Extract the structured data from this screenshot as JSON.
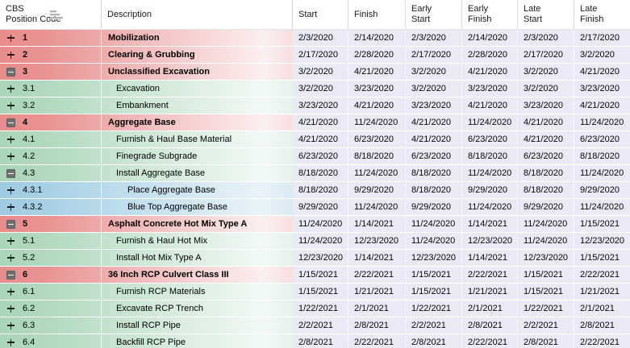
{
  "table": {
    "columns": [
      {
        "key": "cbs-position-code",
        "label": "CBS\nPosition Code",
        "has_sort_icon": true
      },
      {
        "key": "description",
        "label": "Description"
      },
      {
        "key": "start",
        "label": "Start"
      },
      {
        "key": "finish",
        "label": "Finish"
      },
      {
        "key": "early-start",
        "label": "Early\nStart"
      },
      {
        "key": "early-finish",
        "label": "Early\nFinish"
      },
      {
        "key": "late-start",
        "label": "Late\nStart"
      },
      {
        "key": "late-finish",
        "label": "Late\nFinish"
      }
    ],
    "rows": [
      {
        "code": "1",
        "description": "Mobilization",
        "level": 1,
        "type": "summary",
        "toggle": "collapsed",
        "dates": [
          "2/3/2020",
          "2/14/2020",
          "2/3/2020",
          "2/14/2020",
          "2/3/2020",
          "2/17/2020"
        ]
      },
      {
        "code": "2",
        "description": "Clearing & Grubbing",
        "level": 1,
        "type": "summary",
        "toggle": "collapsed",
        "dates": [
          "2/17/2020",
          "2/28/2020",
          "2/17/2020",
          "2/28/2020",
          "2/17/2020",
          "3/2/2020"
        ]
      },
      {
        "code": "3",
        "description": "Unclassified Excavation",
        "level": 1,
        "type": "summary",
        "toggle": "expanded",
        "dates": [
          "3/2/2020",
          "4/21/2020",
          "3/2/2020",
          "4/21/2020",
          "3/2/2020",
          "4/21/2020"
        ]
      },
      {
        "code": "3.1",
        "description": "Excavation",
        "level": 2,
        "type": "activity",
        "toggle": "collapsed",
        "dates": [
          "3/2/2020",
          "3/23/2020",
          "3/2/2020",
          "3/23/2020",
          "3/2/2020",
          "3/23/2020"
        ]
      },
      {
        "code": "3.2",
        "description": "Embankment",
        "level": 2,
        "type": "activity",
        "toggle": "collapsed",
        "dates": [
          "3/23/2020",
          "4/21/2020",
          "3/23/2020",
          "4/21/2020",
          "3/23/2020",
          "4/21/2020"
        ]
      },
      {
        "code": "4",
        "description": "Aggregate Base",
        "level": 1,
        "type": "summary",
        "toggle": "expanded",
        "dates": [
          "4/21/2020",
          "11/24/2020",
          "4/21/2020",
          "11/24/2020",
          "4/21/2020",
          "11/24/2020"
        ]
      },
      {
        "code": "4.1",
        "description": "Furnish & Haul Base Material",
        "level": 2,
        "type": "activity",
        "toggle": "collapsed",
        "dates": [
          "4/21/2020",
          "6/23/2020",
          "4/21/2020",
          "6/23/2020",
          "4/21/2020",
          "6/23/2020"
        ]
      },
      {
        "code": "4.2",
        "description": "Finegrade Subgrade",
        "level": 2,
        "type": "activity",
        "toggle": "collapsed",
        "dates": [
          "6/23/2020",
          "8/18/2020",
          "6/23/2020",
          "8/18/2020",
          "6/23/2020",
          "8/18/2020"
        ]
      },
      {
        "code": "4.3",
        "description": "Install Aggregate Base",
        "level": 2,
        "type": "activity",
        "toggle": "expanded",
        "dates": [
          "8/18/2020",
          "11/24/2020",
          "8/18/2020",
          "11/24/2020",
          "8/18/2020",
          "11/24/2020"
        ]
      },
      {
        "code": "4.3.1",
        "description": "Place Aggregate Base",
        "level": 3,
        "type": "sub_activity",
        "toggle": "collapsed",
        "dates": [
          "8/18/2020",
          "9/29/2020",
          "8/18/2020",
          "9/29/2020",
          "8/18/2020",
          "9/29/2020"
        ]
      },
      {
        "code": "4.3.2",
        "description": "Blue Top Aggregate Base",
        "level": 3,
        "type": "sub_activity",
        "toggle": "collapsed",
        "dates": [
          "9/29/2020",
          "11/24/2020",
          "9/29/2020",
          "11/24/2020",
          "9/29/2020",
          "11/24/2020"
        ]
      },
      {
        "code": "5",
        "description": "Asphalt Concrete Hot Mix Type A",
        "level": 1,
        "type": "summary",
        "toggle": "expanded",
        "dates": [
          "11/24/2020",
          "1/14/2021",
          "11/24/2020",
          "1/14/2021",
          "11/24/2020",
          "1/15/2021"
        ]
      },
      {
        "code": "5.1",
        "description": "Furnish & Haul Hot Mix",
        "level": 2,
        "type": "activity",
        "toggle": "collapsed",
        "dates": [
          "11/24/2020",
          "12/23/2020",
          "11/24/2020",
          "12/23/2020",
          "11/24/2020",
          "12/23/2020"
        ]
      },
      {
        "code": "5.2",
        "description": "Install Hot Mix Type A",
        "level": 2,
        "type": "activity",
        "toggle": "collapsed",
        "dates": [
          "12/23/2020",
          "1/14/2021",
          "12/23/2020",
          "1/14/2021",
          "12/23/2020",
          "1/15/2021"
        ]
      },
      {
        "code": "6",
        "description": "36 Inch RCP Culvert Class III",
        "level": 1,
        "type": "summary",
        "toggle": "expanded",
        "dates": [
          "1/15/2021",
          "2/22/2021",
          "1/15/2021",
          "2/22/2021",
          "1/15/2021",
          "2/22/2021"
        ]
      },
      {
        "code": "6.1",
        "description": "Furnish RCP Materials",
        "level": 2,
        "type": "activity",
        "toggle": "collapsed",
        "dates": [
          "1/15/2021",
          "1/21/2021",
          "1/15/2021",
          "1/21/2021",
          "1/15/2021",
          "1/21/2021"
        ]
      },
      {
        "code": "6.2",
        "description": "Excavate RCP Trench",
        "level": 2,
        "type": "activity",
        "toggle": "collapsed",
        "dates": [
          "1/22/2021",
          "2/1/2021",
          "1/22/2021",
          "2/1/2021",
          "1/22/2021",
          "2/1/2021"
        ]
      },
      {
        "code": "6.3",
        "description": "Install RCP Pipe",
        "level": 2,
        "type": "activity",
        "toggle": "collapsed",
        "dates": [
          "2/2/2021",
          "2/8/2021",
          "2/2/2021",
          "2/8/2021",
          "2/2/2021",
          "2/8/2021"
        ]
      },
      {
        "code": "6.4",
        "description": "Backfill RCP Pipe",
        "level": 2,
        "type": "activity",
        "toggle": "collapsed",
        "dates": [
          "2/8/2021",
          "2/22/2021",
          "2/8/2021",
          "2/22/2021",
          "2/8/2021",
          "2/22/2021"
        ]
      }
    ]
  },
  "colors": {
    "summary_row": "#e98c8c",
    "activity_row": "#a9d5b8",
    "sub_activity_row": "#9ecbe1",
    "date_cell_bg": "#eaeaf7"
  }
}
